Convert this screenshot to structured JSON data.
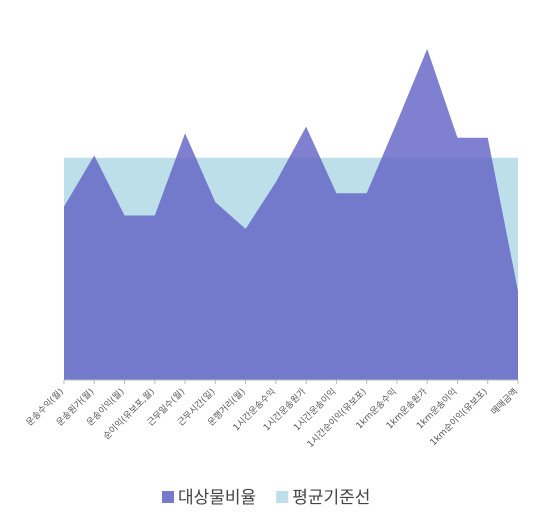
{
  "chart_data": {
    "type": "area",
    "categories": [
      "운송수익(월)",
      "운송원가(월)",
      "운송이익(월)",
      "순이익(유보포,월)",
      "근무일수(월)",
      "근무시간(일)",
      "운행거리(월)",
      "1시간운송수익",
      "1시간운송원가",
      "1시간운송이익",
      "1시간순이익(유보포)",
      "1km운송수익",
      "1km운송원가",
      "1km운송이익",
      "1km순이익(유보포)",
      "매매금액"
    ],
    "series": [
      {
        "name": "대상물비율",
        "color": "#6060c4",
        "values": [
          78,
          101,
          74,
          74,
          111,
          80,
          68,
          89,
          114,
          84,
          84,
          116,
          149,
          109,
          109,
          40
        ]
      },
      {
        "name": "평균기준선",
        "color": "#bddfea",
        "values": [
          100,
          100,
          100,
          100,
          100,
          100,
          100,
          100,
          100,
          100,
          100,
          100,
          100,
          100,
          100,
          100
        ]
      }
    ],
    "ylim": [
      0,
      150
    ],
    "legend": "bottom"
  }
}
